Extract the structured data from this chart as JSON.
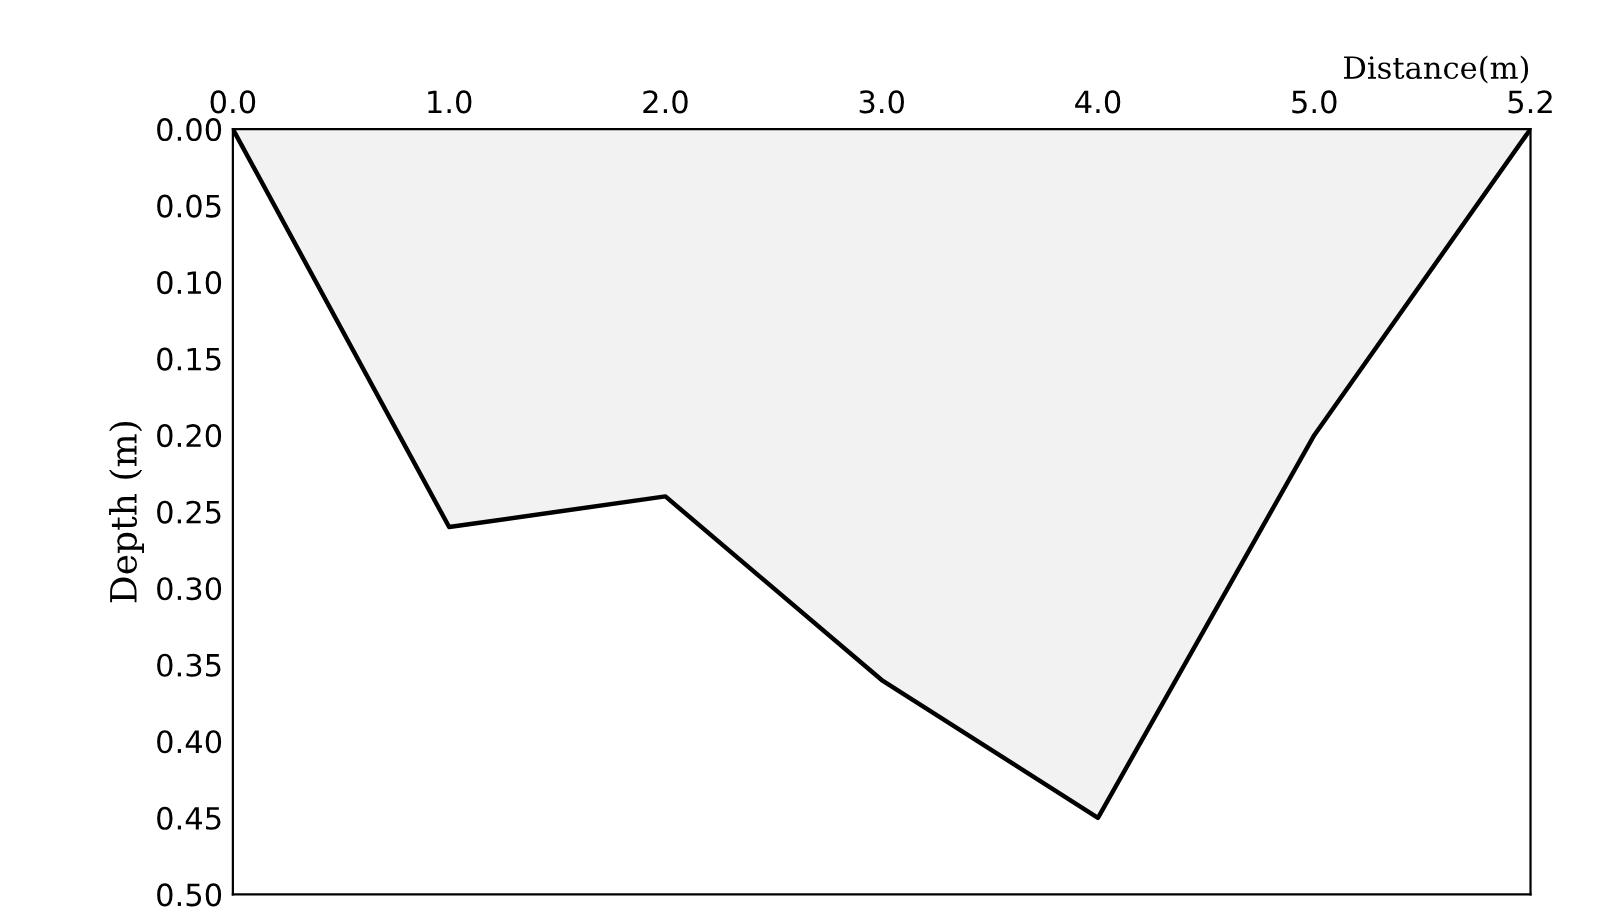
{
  "chart_data": {
    "type": "area",
    "xlabel": "Distance(m)",
    "ylabel": "Depth (m)",
    "categories": [
      "0.0",
      "1.0",
      "2.0",
      "3.0",
      "4.0",
      "5.0",
      "5.2"
    ],
    "series": [
      {
        "color": "#f2f2f2",
        "values": [
          0,
          0.26,
          0.24,
          0.36,
          0.45,
          0.2,
          0
        ]
      }
    ],
    "ylim": [
      0.5,
      0
    ],
    "yticks": [
      {
        "value": 0,
        "label": "0.00"
      },
      {
        "value": 0.05,
        "label": "0.05"
      },
      {
        "value": 0.1,
        "label": "0.10"
      },
      {
        "value": 0.15,
        "label": "0.15"
      },
      {
        "value": 0.2,
        "label": "0.20"
      },
      {
        "value": 0.25,
        "label": "0.25"
      },
      {
        "value": 0.3,
        "label": "0.30"
      },
      {
        "value": 0.35,
        "label": "0.35"
      },
      {
        "value": 0.4,
        "label": "0.40"
      },
      {
        "value": 0.45,
        "label": "0.45"
      },
      {
        "value": 0.5,
        "label": "0.50"
      }
    ],
    "grid": false,
    "legend": false
  }
}
